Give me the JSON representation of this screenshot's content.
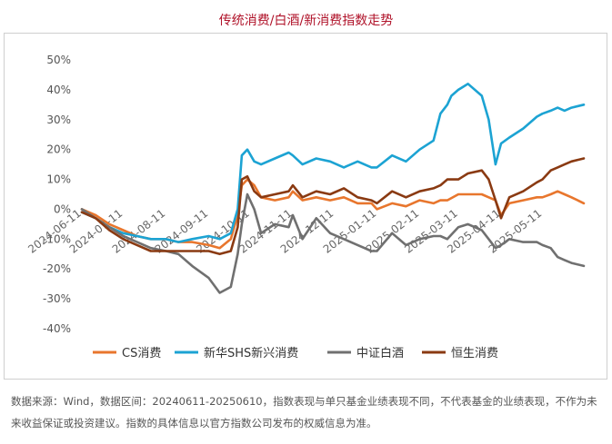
{
  "title": "传统消费/白酒/新消费指数走势",
  "footer": "数据来源：Wind，数据区间：20240611-20250610，指数表现与单只基金业绩表现不同，不代表基金的业绩表现，不作为未来收益保证或投资建议。指数的具体信息以官方指数公司发布的权威信息为准。",
  "chart_data": {
    "type": "line",
    "title": "传统消费/白酒/新消费指数走势",
    "xlabel": "",
    "ylabel": "",
    "ylim": [
      -40,
      50
    ],
    "yticks": [
      "50%",
      "40%",
      "30%",
      "20%",
      "10%",
      "0%",
      "-10%",
      "-20%",
      "-30%",
      "-40%"
    ],
    "ytick_values": [
      50,
      40,
      30,
      20,
      10,
      0,
      -10,
      -20,
      -30,
      -40
    ],
    "xticks": [
      "2024-06-11",
      "2024-07-11",
      "2024-08-11",
      "2024-09-11",
      "2024-10-11",
      "2024-11-11",
      "2024-12-11",
      "2025-01-11",
      "2025-02-11",
      "2025-03-11",
      "2025-04-11",
      "2025-05-11"
    ],
    "xtick_positions": [
      0,
      30,
      61,
      92,
      122,
      153,
      183,
      214,
      245,
      273,
      304,
      334
    ],
    "x_range": [
      0,
      364
    ],
    "grid": false,
    "legend_position": "bottom",
    "series": [
      {
        "name": "CS消费",
        "color": "#e8762d",
        "x": [
          0,
          10,
          20,
          30,
          40,
          50,
          61,
          70,
          80,
          92,
          100,
          108,
          113,
          116,
          120,
          125,
          130,
          140,
          150,
          153,
          160,
          170,
          180,
          190,
          200,
          210,
          214,
          225,
          235,
          245,
          255,
          260,
          265,
          273,
          280,
          290,
          295,
          300,
          304,
          310,
          320,
          330,
          334,
          340,
          345,
          350,
          355,
          364
        ],
        "values": [
          0,
          -2,
          -5,
          -7,
          -9,
          -10,
          -10,
          -11,
          -11,
          -12,
          -13,
          -10,
          -2,
          8,
          10,
          8,
          4,
          3,
          4,
          6,
          3,
          4,
          3,
          4,
          2,
          2,
          0,
          2,
          1,
          3,
          2,
          3,
          3,
          5,
          5,
          5,
          4,
          3,
          -2,
          2,
          3,
          4,
          4,
          5,
          6,
          5,
          4,
          2
        ]
      },
      {
        "name": "新华SHS新兴消费",
        "color": "#1ca3d3",
        "x": [
          0,
          10,
          20,
          30,
          40,
          50,
          61,
          70,
          80,
          92,
          100,
          108,
          113,
          116,
          120,
          125,
          130,
          140,
          150,
          153,
          160,
          170,
          180,
          190,
          200,
          210,
          214,
          225,
          235,
          245,
          255,
          260,
          265,
          268,
          273,
          280,
          290,
          295,
          300,
          304,
          310,
          320,
          330,
          334,
          340,
          345,
          350,
          355,
          364
        ],
        "values": [
          -1,
          -3,
          -6,
          -8,
          -9,
          -10,
          -10,
          -11,
          -10,
          -9,
          -10,
          -8,
          0,
          18,
          20,
          16,
          15,
          17,
          19,
          18,
          15,
          17,
          16,
          14,
          16,
          14,
          14,
          18,
          16,
          20,
          23,
          32,
          35,
          38,
          40,
          42,
          38,
          30,
          15,
          22,
          24,
          27,
          31,
          32,
          33,
          34,
          33,
          34,
          35
        ]
      },
      {
        "name": "中证白酒",
        "color": "#707070",
        "x": [
          0,
          10,
          20,
          30,
          40,
          50,
          61,
          70,
          80,
          92,
          100,
          108,
          113,
          116,
          120,
          125,
          130,
          140,
          150,
          153,
          160,
          170,
          180,
          190,
          200,
          210,
          214,
          225,
          235,
          245,
          255,
          260,
          265,
          273,
          280,
          290,
          295,
          300,
          304,
          310,
          320,
          330,
          334,
          340,
          345,
          350,
          355,
          364
        ],
        "values": [
          0,
          -3,
          -6,
          -9,
          -11,
          -13,
          -14,
          -15,
          -19,
          -23,
          -28,
          -26,
          -15,
          -5,
          5,
          0,
          -8,
          -5,
          -6,
          -2,
          -10,
          -3,
          -8,
          -10,
          -12,
          -14,
          -14,
          -8,
          -12,
          -10,
          -9,
          -9,
          -10,
          -6,
          -5,
          -7,
          -10,
          -13,
          -12,
          -10,
          -11,
          -11,
          -12,
          -13,
          -16,
          -17,
          -18,
          -19
        ]
      },
      {
        "name": "恒生消费",
        "color": "#8a3a12",
        "x": [
          0,
          10,
          20,
          30,
          40,
          50,
          61,
          70,
          80,
          92,
          100,
          108,
          113,
          116,
          120,
          125,
          130,
          140,
          150,
          153,
          160,
          170,
          180,
          190,
          200,
          210,
          214,
          225,
          235,
          245,
          255,
          260,
          265,
          273,
          280,
          290,
          295,
          300,
          304,
          310,
          320,
          330,
          334,
          340,
          345,
          350,
          355,
          364
        ],
        "values": [
          -1,
          -3,
          -7,
          -10,
          -12,
          -14,
          -14,
          -14,
          -14,
          -14,
          -15,
          -14,
          -6,
          10,
          11,
          6,
          4,
          5,
          6,
          8,
          4,
          6,
          5,
          7,
          4,
          3,
          2,
          6,
          4,
          6,
          7,
          8,
          10,
          10,
          12,
          13,
          10,
          3,
          -3,
          4,
          6,
          9,
          10,
          13,
          14,
          15,
          16,
          17
        ]
      }
    ]
  }
}
